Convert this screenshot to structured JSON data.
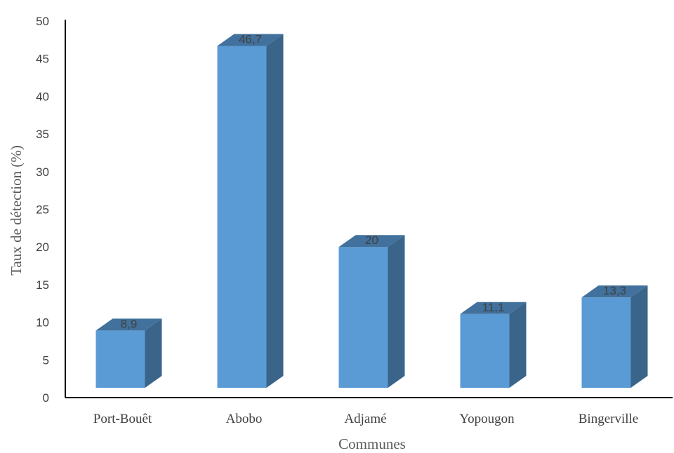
{
  "chart_data": {
    "type": "bar",
    "title": "",
    "xlabel": "Communes",
    "ylabel": "Taux de détection (%)",
    "categories": [
      "Port-Bouêt",
      "Abobo",
      "Adjamé",
      "Yopougon",
      "Bingerville"
    ],
    "values": [
      8.9,
      46.7,
      20,
      11.1,
      13.3
    ],
    "value_labels": [
      "8,9",
      "46,7",
      "20",
      "11,1",
      "13,3"
    ],
    "ylim": [
      0,
      50
    ],
    "yticks": [
      0,
      5,
      10,
      15,
      20,
      25,
      30,
      35,
      40,
      45,
      50
    ],
    "grid": false,
    "legend": "none",
    "style": "3d-column",
    "colors": {
      "front": "#5b9bd5",
      "top": "#41719c",
      "side": "#3a6489"
    }
  }
}
